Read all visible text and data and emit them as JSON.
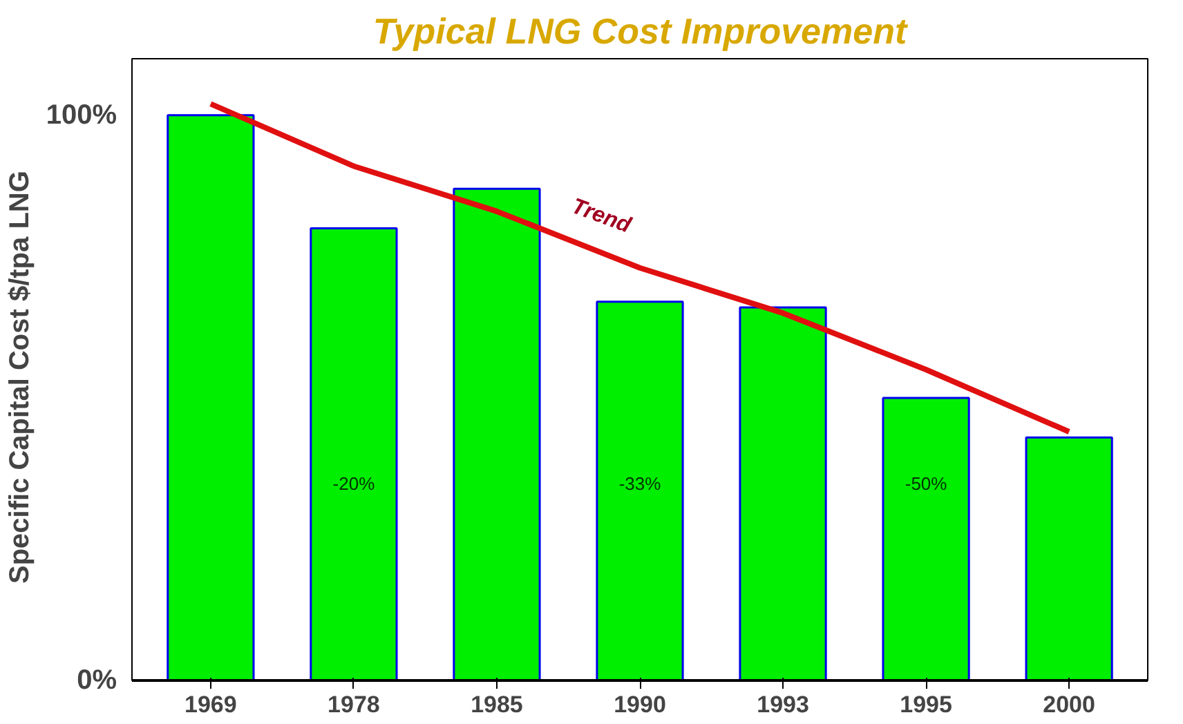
{
  "chart_data": {
    "type": "bar",
    "title": "Typical LNG Cost Improvement",
    "ylabel": "Specific Capital Cost  $/tpa  LNG",
    "categories": [
      "1969",
      "1978",
      "1985",
      "1990",
      "1993",
      "1995",
      "2000"
    ],
    "series": [
      {
        "color": "#00ee00",
        "values": [
          100,
          80,
          87,
          67,
          66,
          50,
          43
        ]
      },
      {
        "type": "line",
        "name": "Trend",
        "color": "#e01010",
        "values": [
          102,
          91,
          83,
          73,
          65,
          55,
          44
        ]
      }
    ],
    "ylim": [
      0,
      110
    ],
    "yticks": [
      {
        "value": 0,
        "label": "0%"
      },
      {
        "value": 100,
        "label": "100%"
      }
    ],
    "annotations": [
      "-20%",
      "-33%",
      "-50%"
    ],
    "grid": false
  }
}
